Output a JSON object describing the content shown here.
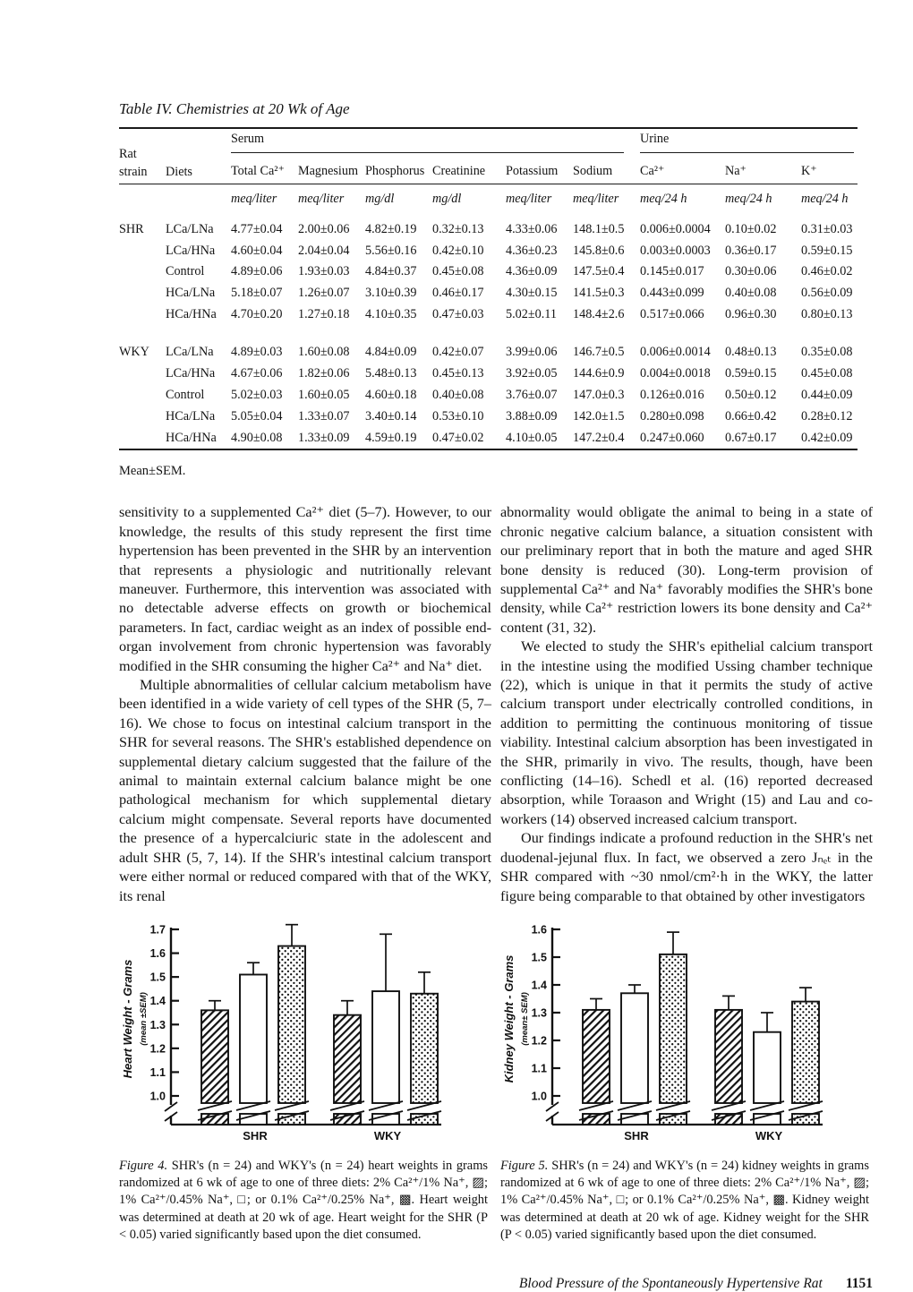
{
  "table": {
    "title": "Table IV. Chemistries at 20 Wk of Age",
    "headers": {
      "rat_line1": "Rat",
      "rat_line2": "strain",
      "diets": "Diets",
      "serum": "Serum",
      "urine": "Urine",
      "cols": [
        "Total Ca²⁺",
        "Magnesium",
        "Phosphorus",
        "Creatinine",
        "Potassium",
        "Sodium",
        "Ca²⁺",
        "Na⁺",
        "K⁺"
      ]
    },
    "units": [
      "meq/liter",
      "meq/liter",
      "mg/dl",
      "mg/dl",
      "meq/liter",
      "meq/liter",
      "meq/24 h",
      "meq/24 h",
      "meq/24 h"
    ],
    "blocks": [
      {
        "strain": "SHR",
        "rows": [
          {
            "diet": "LCa/LNa",
            "values": [
              "4.77±0.04",
              "2.00±0.06",
              "4.82±0.19",
              "0.32±0.13",
              "4.33±0.06",
              "148.1±0.5",
              "0.006±0.0004",
              "0.10±0.02",
              "0.31±0.03"
            ]
          },
          {
            "diet": "LCa/HNa",
            "values": [
              "4.60±0.04",
              "2.04±0.04",
              "5.56±0.16",
              "0.42±0.10",
              "4.36±0.23",
              "145.8±0.6",
              "0.003±0.0003",
              "0.36±0.17",
              "0.59±0.15"
            ]
          },
          {
            "diet": "Control",
            "values": [
              "4.89±0.06",
              "1.93±0.03",
              "4.84±0.37",
              "0.45±0.08",
              "4.36±0.09",
              "147.5±0.4",
              "0.145±0.017",
              "0.30±0.06",
              "0.46±0.02"
            ]
          },
          {
            "diet": "HCa/LNa",
            "values": [
              "5.18±0.07",
              "1.26±0.07",
              "3.10±0.39",
              "0.46±0.17",
              "4.30±0.15",
              "141.5±0.3",
              "0.443±0.099",
              "0.40±0.08",
              "0.56±0.09"
            ]
          },
          {
            "diet": "HCa/HNa",
            "values": [
              "4.70±0.20",
              "1.27±0.18",
              "4.10±0.35",
              "0.47±0.03",
              "5.02±0.11",
              "148.4±2.6",
              "0.517±0.066",
              "0.96±0.30",
              "0.80±0.13"
            ]
          }
        ]
      },
      {
        "strain": "WKY",
        "rows": [
          {
            "diet": "LCa/LNa",
            "values": [
              "4.89±0.03",
              "1.60±0.08",
              "4.84±0.09",
              "0.42±0.07",
              "3.99±0.06",
              "146.7±0.5",
              "0.006±0.0014",
              "0.48±0.13",
              "0.35±0.08"
            ]
          },
          {
            "diet": "LCa/HNa",
            "values": [
              "4.67±0.06",
              "1.82±0.06",
              "5.48±0.13",
              "0.45±0.13",
              "3.92±0.05",
              "144.6±0.9",
              "0.004±0.0018",
              "0.59±0.15",
              "0.45±0.08"
            ]
          },
          {
            "diet": "Control",
            "values": [
              "5.02±0.03",
              "1.60±0.05",
              "4.60±0.18",
              "0.40±0.08",
              "3.76±0.07",
              "147.0±0.3",
              "0.126±0.016",
              "0.50±0.12",
              "0.44±0.09"
            ]
          },
          {
            "diet": "HCa/LNa",
            "values": [
              "5.05±0.04",
              "1.33±0.07",
              "3.40±0.14",
              "0.53±0.10",
              "3.88±0.09",
              "142.0±1.5",
              "0.280±0.098",
              "0.66±0.42",
              "0.28±0.12"
            ]
          },
          {
            "diet": "HCa/HNa",
            "values": [
              "4.90±0.08",
              "1.33±0.09",
              "4.59±0.19",
              "0.47±0.02",
              "4.10±0.05",
              "147.2±0.4",
              "0.247±0.060",
              "0.67±0.17",
              "0.42±0.09"
            ]
          }
        ]
      }
    ],
    "footnote": "Mean±SEM."
  },
  "body": {
    "left": [
      "sensitivity to a supplemented Ca²⁺ diet (5–7). However, to our knowledge, the results of this study represent the first time hypertension has been prevented in the SHR by an intervention that represents a physiologic and nutritionally relevant maneuver. Furthermore, this intervention was associated with no detectable adverse effects on growth or biochemical parameters. In fact, cardiac weight as an index of possible end-organ involvement from chronic hypertension was favorably modified in the SHR consuming the higher Ca²⁺ and Na⁺ diet.",
      "Multiple abnormalities of cellular calcium metabolism have been identified in a wide variety of cell types of the SHR (5, 7–16). We chose to focus on intestinal calcium transport in the SHR for several reasons. The SHR's established dependence on supplemental dietary calcium suggested that the failure of the animal to maintain external calcium balance might be one pathological mechanism for which supplemental dietary calcium might compensate. Several reports have documented the presence of a hypercalciuric state in the adolescent and adult SHR (5, 7, 14). If the SHR's intestinal calcium transport were either normal or reduced compared with that of the WKY, its renal"
    ],
    "right": [
      "abnormality would obligate the animal to being in a state of chronic negative calcium balance, a situation consistent with our preliminary report that in both the mature and aged SHR bone density is reduced (30). Long-term provision of supplemental Ca²⁺ and Na⁺ favorably modifies the SHR's bone density, while Ca²⁺ restriction lowers its bone density and Ca²⁺ content (31, 32).",
      "We elected to study the SHR's epithelial calcium transport in the intestine using the modified Ussing chamber technique (22), which is unique in that it permits the study of active calcium transport under electrically controlled conditions, in addition to permitting the continuous monitoring of tissue viability. Intestinal calcium absorption has been investigated in the SHR, primarily in vivo. The results, though, have been conflicting (14–16). Schedl et al. (16) reported decreased absorption, while Toraason and Wright (15) and Lau and co-workers (14) observed increased calcium transport.",
      "Our findings indicate a profound reduction in the SHR's net duodenal-jejunal flux. In fact, we observed a zero Jₙₑₜ in the SHR compared with ~30 nmol/cm²·h in the WKY, the latter figure being comparable to that obtained by other investigators"
    ]
  },
  "figures": [
    {
      "label": "Figure 4.",
      "caption": "SHR's (n = 24) and WKY's (n = 24) heart weights in grams randomized at 6 wk of age to one of three diets: 2% Ca²⁺/1% Na⁺, ▨; 1% Ca²⁺/0.45% Na⁺, □; or 0.1% Ca²⁺/0.25% Na⁺, ▩. Heart weight was determined at death at 20 wk of age. Heart weight for the SHR (P < 0.05) varied significantly based upon the diet consumed."
    },
    {
      "label": "Figure 5.",
      "caption": "SHR's (n = 24) and WKY's (n = 24) kidney weights in grams randomized at 6 wk of age to one of three diets: 2% Ca²⁺/1% Na⁺, ▨; 1% Ca²⁺/0.45% Na⁺, □; or 0.1% Ca²⁺/0.25% Na⁺, ▩. Kidney weight was determined at death at 20 wk of age. Kidney weight for the SHR (P < 0.05) varied significantly based upon the diet consumed."
    }
  ],
  "chart_data": [
    {
      "type": "bar",
      "name": "heart-weight-chart",
      "categories": [
        "SHR",
        "WKY"
      ],
      "series": [
        {
          "name": "2% Ca²⁺/1% Na⁺",
          "pattern": "hatch",
          "values": [
            1.36,
            1.34
          ],
          "errors": [
            0.04,
            0.06
          ]
        },
        {
          "name": "1% Ca²⁺/0.45% Na⁺",
          "pattern": "open",
          "values": [
            1.51,
            1.44
          ],
          "errors": [
            0.05,
            0.24
          ]
        },
        {
          "name": "0.1% Ca²⁺/0.25% Na⁺",
          "pattern": "stipple",
          "values": [
            1.63,
            1.43
          ],
          "errors": [
            0.09,
            0.09
          ]
        }
      ],
      "ylabel": "Heart Weight - Grams",
      "ylabel2": "(mean ±SEM)",
      "ylim": [
        1.0,
        1.7
      ],
      "ytick": 0.1,
      "axis_break": true,
      "grid": false,
      "legend_position": "none"
    },
    {
      "type": "bar",
      "name": "kidney-weight-chart",
      "categories": [
        "SHR",
        "WKY"
      ],
      "series": [
        {
          "name": "2% Ca²⁺/1% Na⁺",
          "pattern": "hatch",
          "values": [
            1.31,
            1.31
          ],
          "errors": [
            0.04,
            0.05
          ]
        },
        {
          "name": "1% Ca²⁺/0.45% Na⁺",
          "pattern": "open",
          "values": [
            1.37,
            1.23
          ],
          "errors": [
            0.03,
            0.07
          ]
        },
        {
          "name": "0.1% Ca²⁺/0.25% Na⁺",
          "pattern": "stipple",
          "values": [
            1.51,
            1.34
          ],
          "errors": [
            0.08,
            0.05
          ]
        }
      ],
      "ylabel": "Kidney Weight - Grams",
      "ylabel2": "(mean± SEM)",
      "ylim": [
        1.0,
        1.6
      ],
      "ytick": 0.1,
      "axis_break": true,
      "grid": false,
      "legend_position": "none"
    }
  ],
  "footer": {
    "running_title": "Blood Pressure of the Spontaneously Hypertensive Rat",
    "page_number": "1151"
  }
}
